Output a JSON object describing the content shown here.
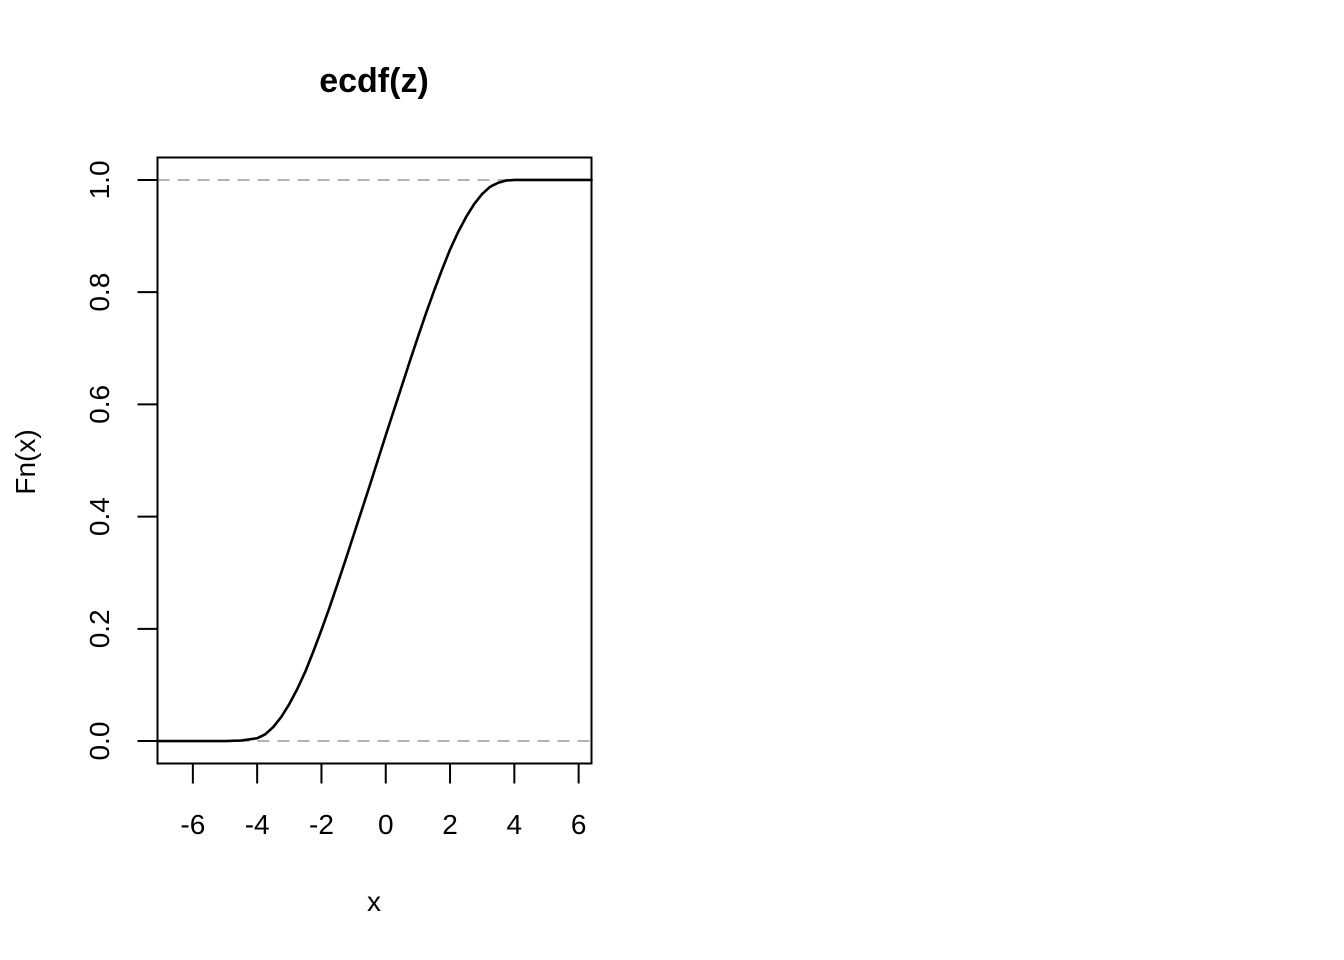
{
  "chart_data": {
    "type": "line",
    "title": "ecdf(z)",
    "xlabel": "x",
    "ylabel": "Fn(x)",
    "xlim": [
      -7.1,
      6.4
    ],
    "ylim": [
      -0.04,
      1.04
    ],
    "xticks": [
      -6,
      -4,
      -2,
      0,
      2,
      4,
      6
    ],
    "xtick_labels": [
      "-6",
      "-4",
      "-2",
      "0",
      "2",
      "4",
      "6"
    ],
    "yticks": [
      0.0,
      0.2,
      0.4,
      0.6,
      0.8,
      1.0
    ],
    "ytick_labels": [
      "0.0",
      "0.2",
      "0.4",
      "0.6",
      "0.8",
      "1.0"
    ],
    "grid": false,
    "reference_lines": [
      {
        "y": 0.0,
        "style": "dashed",
        "color": "#b3b3b3"
      },
      {
        "y": 1.0,
        "style": "dashed",
        "color": "#b3b3b3"
      }
    ],
    "series": [
      {
        "color": "#000000",
        "x": [
          -7.1,
          -5.0,
          -4.5,
          -4.0,
          -3.75,
          -3.5,
          -3.25,
          -3.0,
          -2.75,
          -2.5,
          -2.25,
          -2.0,
          -1.75,
          -1.5,
          -1.25,
          -1.0,
          -0.75,
          -0.5,
          -0.25,
          0.0,
          0.25,
          0.5,
          0.75,
          1.0,
          1.25,
          1.5,
          1.75,
          2.0,
          2.25,
          2.5,
          2.75,
          3.0,
          3.25,
          3.5,
          3.75,
          4.0,
          4.5,
          5.0,
          6.4
        ],
        "y": [
          0.0,
          0.0,
          0.001,
          0.005,
          0.012,
          0.025,
          0.043,
          0.066,
          0.093,
          0.124,
          0.16,
          0.198,
          0.238,
          0.28,
          0.323,
          0.367,
          0.411,
          0.455,
          0.5,
          0.545,
          0.589,
          0.633,
          0.677,
          0.72,
          0.762,
          0.802,
          0.84,
          0.876,
          0.907,
          0.934,
          0.957,
          0.975,
          0.988,
          0.995,
          0.999,
          1.0,
          1.0,
          1.0,
          1.0
        ]
      }
    ]
  }
}
